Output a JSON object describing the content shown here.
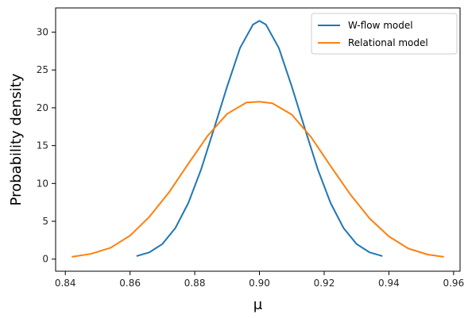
{
  "chart_data": {
    "type": "line",
    "title": "",
    "xlabel": "μ",
    "ylabel": "Probability density",
    "xlim": [
      0.837,
      0.962
    ],
    "ylim": [
      -1.6,
      33.2
    ],
    "xticks": [
      0.84,
      0.86,
      0.88,
      0.9,
      0.92,
      0.94,
      0.96
    ],
    "xtick_labels": [
      "0.84",
      "0.86",
      "0.88",
      "0.90",
      "0.92",
      "0.94",
      "0.96"
    ],
    "yticks": [
      0,
      5,
      10,
      15,
      20,
      25,
      30
    ],
    "ytick_labels": [
      "0",
      "5",
      "10",
      "15",
      "20",
      "25",
      "30"
    ],
    "grid": false,
    "legend_position": "top-right",
    "series": [
      {
        "name": "W-flow model",
        "color": "#1f77b4",
        "x": [
          0.862,
          0.866,
          0.87,
          0.874,
          0.878,
          0.882,
          0.886,
          0.89,
          0.894,
          0.898,
          0.9,
          0.902,
          0.906,
          0.91,
          0.914,
          0.918,
          0.922,
          0.926,
          0.93,
          0.934,
          0.938
        ],
        "y": [
          0.4,
          0.9,
          2.0,
          4.1,
          7.4,
          11.9,
          17.3,
          22.8,
          27.9,
          31.0,
          31.5,
          31.0,
          27.9,
          22.8,
          17.3,
          11.9,
          7.4,
          4.1,
          2.0,
          0.9,
          0.4
        ]
      },
      {
        "name": "Relational model",
        "color": "#ff7f0e",
        "x": [
          0.842,
          0.848,
          0.854,
          0.86,
          0.866,
          0.872,
          0.878,
          0.884,
          0.89,
          0.896,
          0.9,
          0.904,
          0.91,
          0.916,
          0.922,
          0.928,
          0.934,
          0.94,
          0.946,
          0.952,
          0.957
        ],
        "y": [
          0.3,
          0.7,
          1.5,
          3.1,
          5.6,
          8.8,
          12.6,
          16.3,
          19.2,
          20.7,
          20.8,
          20.6,
          19.1,
          16.1,
          12.3,
          8.6,
          5.4,
          3.0,
          1.4,
          0.6,
          0.3
        ]
      }
    ]
  }
}
